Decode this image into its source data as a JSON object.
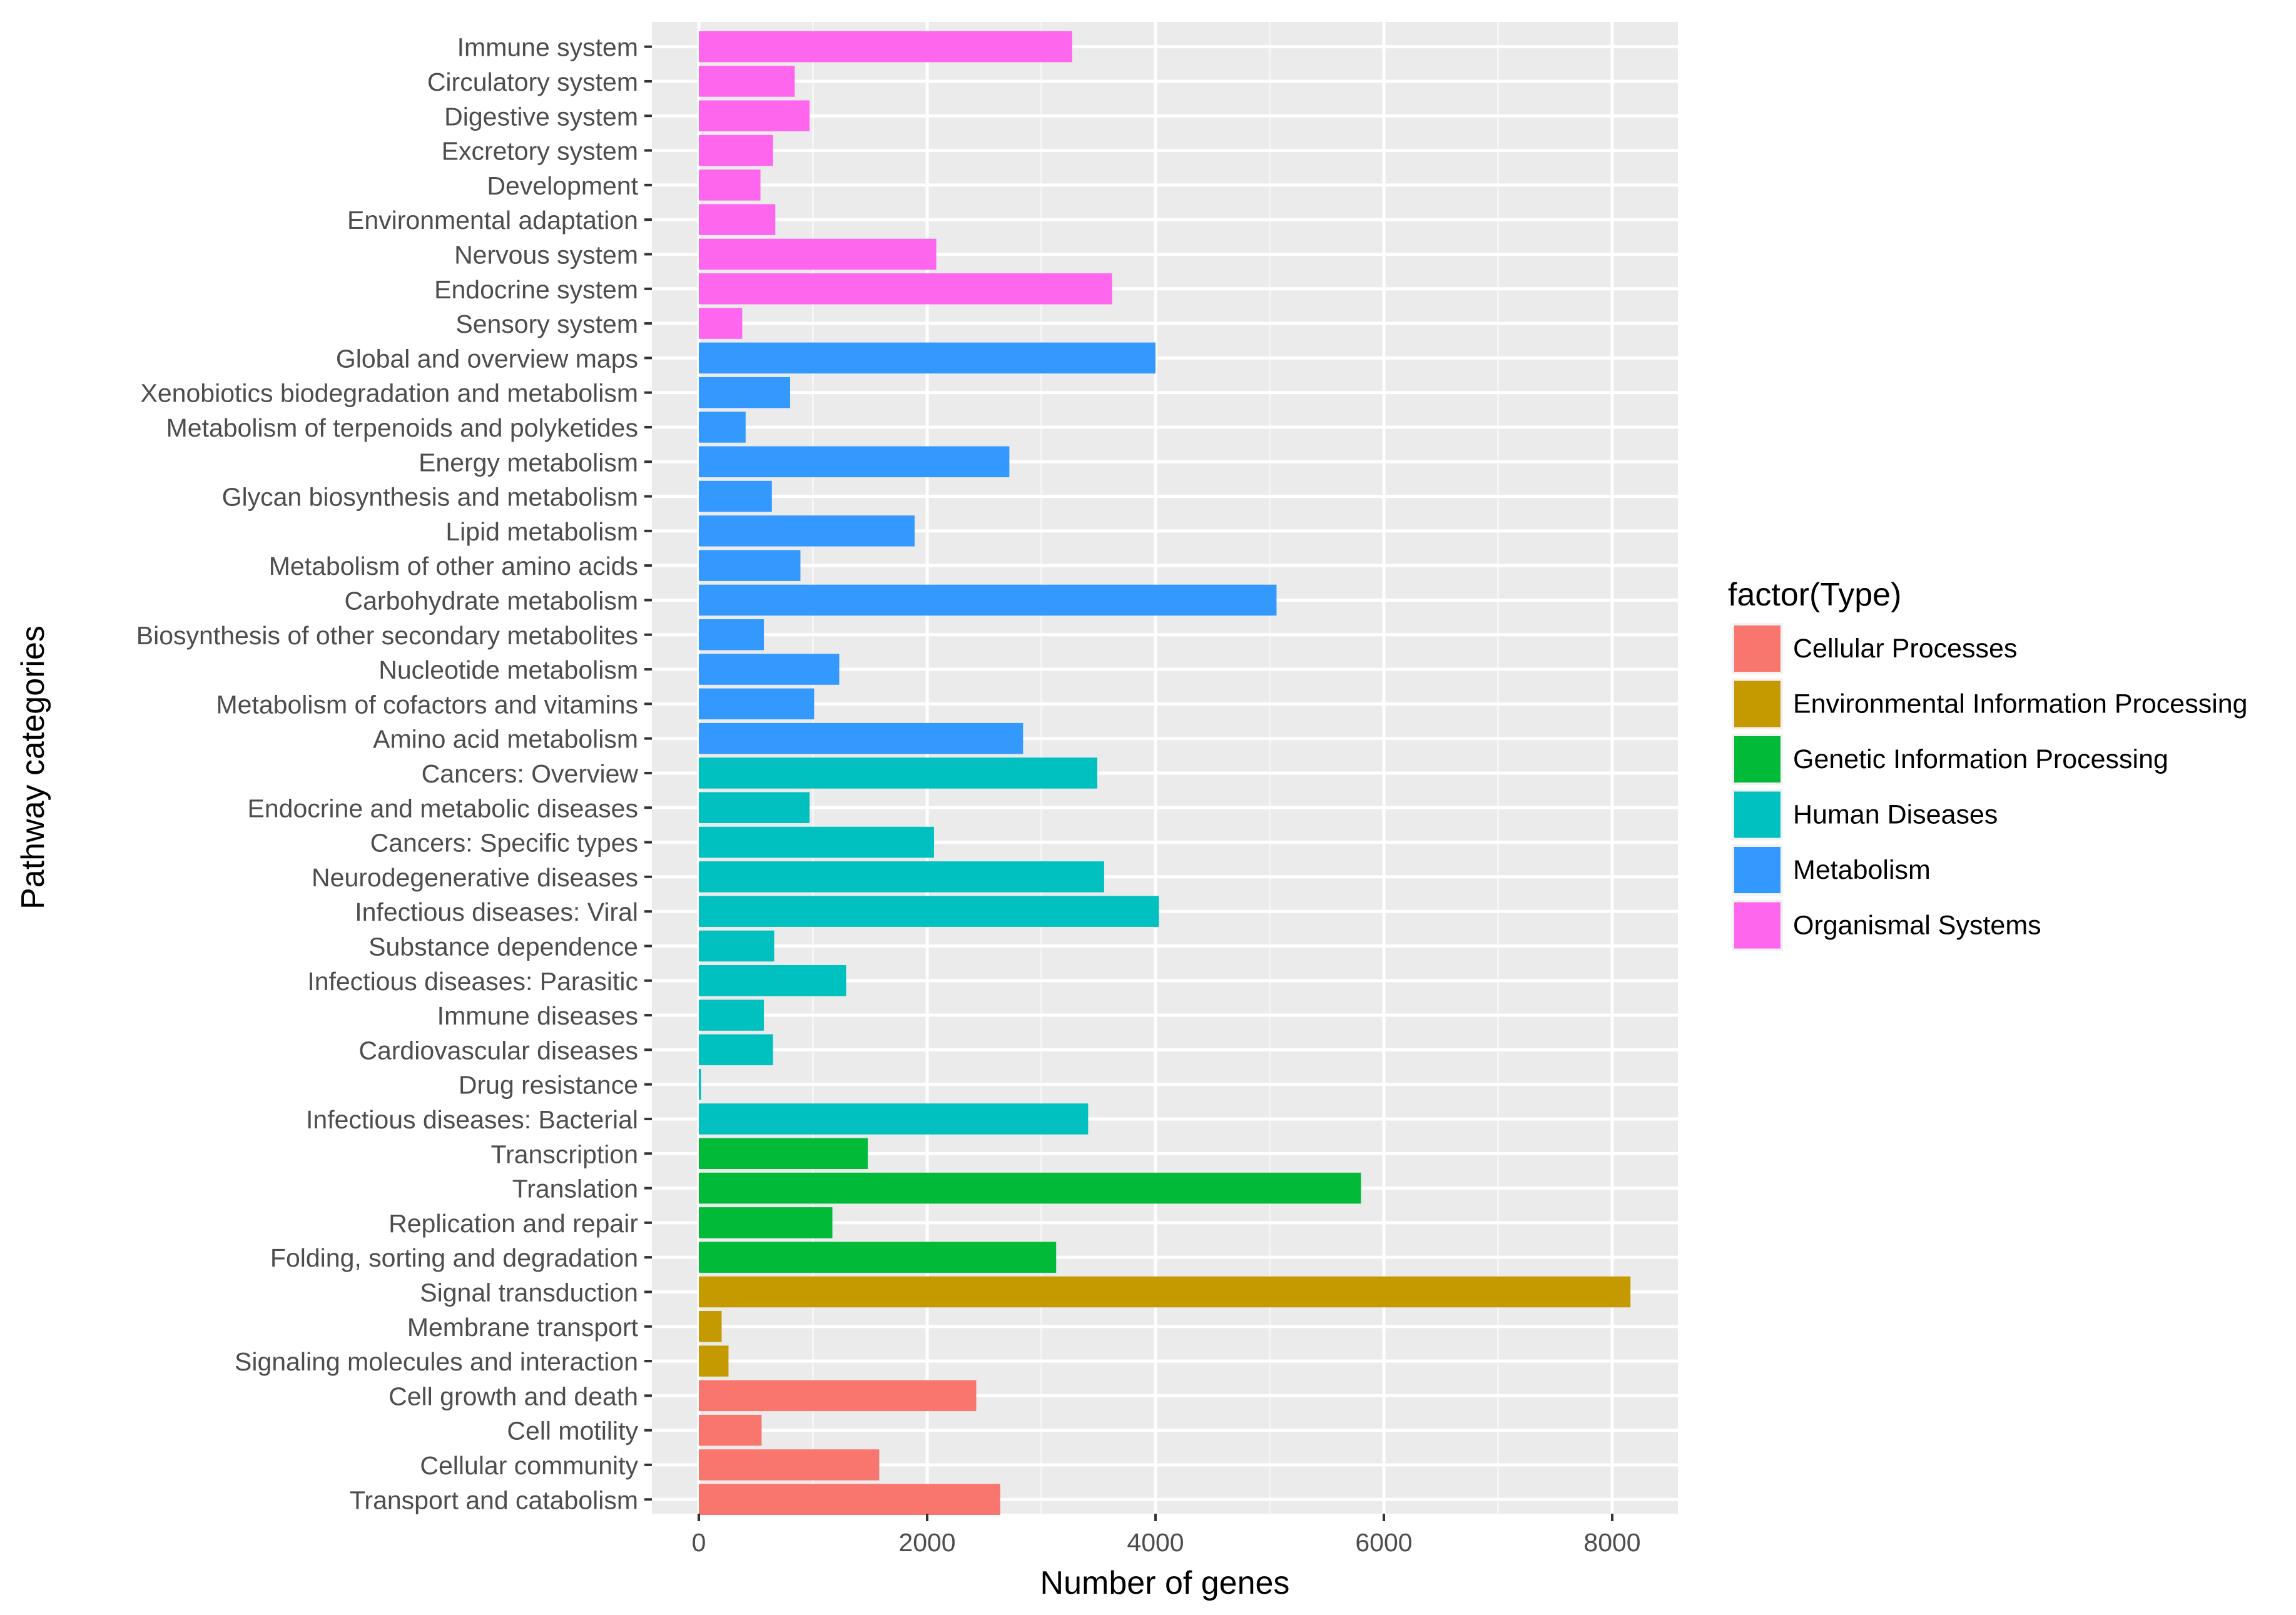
{
  "chart_data": {
    "type": "bar",
    "orientation": "horizontal",
    "xlabel": "Number of genes",
    "ylabel": "Pathway categories",
    "xlim": [
      -500,
      8500
    ],
    "xticks": [
      0,
      2000,
      4000,
      6000,
      8000
    ],
    "xtick_labels": [
      "0",
      "2000",
      "4000",
      "6000",
      "8000"
    ],
    "grid": true,
    "legend": {
      "title": "factor(Type)",
      "position": "right",
      "entries": [
        {
          "label": "Cellular Processes",
          "color": "#F8766D"
        },
        {
          "label": "Environmental Information Processing",
          "color": "#C49A00"
        },
        {
          "label": "Genetic Information Processing",
          "color": "#00BA38"
        },
        {
          "label": "Human Diseases",
          "color": "#00C0C0"
        },
        {
          "label": "Metabolism",
          "color": "#3399FF"
        },
        {
          "label": "Organismal Systems",
          "color": "#FF66EE"
        }
      ]
    },
    "bars": [
      {
        "category": "Immune system",
        "value": 3270,
        "type": "Organismal Systems"
      },
      {
        "category": "Circulatory system",
        "value": 840,
        "type": "Organismal Systems"
      },
      {
        "category": "Digestive system",
        "value": 970,
        "type": "Organismal Systems"
      },
      {
        "category": "Excretory system",
        "value": 650,
        "type": "Organismal Systems"
      },
      {
        "category": "Development",
        "value": 540,
        "type": "Organismal Systems"
      },
      {
        "category": "Environmental adaptation",
        "value": 670,
        "type": "Organismal Systems"
      },
      {
        "category": "Nervous system",
        "value": 2080,
        "type": "Organismal Systems"
      },
      {
        "category": "Endocrine system",
        "value": 3620,
        "type": "Organismal Systems"
      },
      {
        "category": "Sensory system",
        "value": 380,
        "type": "Organismal Systems"
      },
      {
        "category": "Global and overview maps",
        "value": 4000,
        "type": "Metabolism"
      },
      {
        "category": "Xenobiotics biodegradation and metabolism",
        "value": 800,
        "type": "Metabolism"
      },
      {
        "category": "Metabolism of terpenoids and polyketides",
        "value": 410,
        "type": "Metabolism"
      },
      {
        "category": "Energy metabolism",
        "value": 2720,
        "type": "Metabolism"
      },
      {
        "category": "Glycan biosynthesis and metabolism",
        "value": 640,
        "type": "Metabolism"
      },
      {
        "category": "Lipid metabolism",
        "value": 1890,
        "type": "Metabolism"
      },
      {
        "category": "Metabolism of other amino acids",
        "value": 890,
        "type": "Metabolism"
      },
      {
        "category": "Carbohydrate metabolism",
        "value": 5060,
        "type": "Metabolism"
      },
      {
        "category": "Biosynthesis of other secondary metabolites",
        "value": 570,
        "type": "Metabolism"
      },
      {
        "category": "Nucleotide metabolism",
        "value": 1230,
        "type": "Metabolism"
      },
      {
        "category": "Metabolism of cofactors and vitamins",
        "value": 1010,
        "type": "Metabolism"
      },
      {
        "category": "Amino acid metabolism",
        "value": 2840,
        "type": "Metabolism"
      },
      {
        "category": "Cancers: Overview",
        "value": 3490,
        "type": "Human Diseases"
      },
      {
        "category": "Endocrine and metabolic diseases",
        "value": 970,
        "type": "Human Diseases"
      },
      {
        "category": "Cancers: Specific types",
        "value": 2060,
        "type": "Human Diseases"
      },
      {
        "category": "Neurodegenerative diseases",
        "value": 3550,
        "type": "Human Diseases"
      },
      {
        "category": "Infectious diseases: Viral",
        "value": 4030,
        "type": "Human Diseases"
      },
      {
        "category": "Substance dependence",
        "value": 660,
        "type": "Human Diseases"
      },
      {
        "category": "Infectious diseases: Parasitic",
        "value": 1290,
        "type": "Human Diseases"
      },
      {
        "category": "Immune diseases",
        "value": 570,
        "type": "Human Diseases"
      },
      {
        "category": "Cardiovascular diseases",
        "value": 650,
        "type": "Human Diseases"
      },
      {
        "category": "Drug resistance",
        "value": 20,
        "type": "Human Diseases"
      },
      {
        "category": "Infectious diseases: Bacterial",
        "value": 3410,
        "type": "Human Diseases"
      },
      {
        "category": "Transcription",
        "value": 1480,
        "type": "Genetic Information Processing"
      },
      {
        "category": "Translation",
        "value": 5800,
        "type": "Genetic Information Processing"
      },
      {
        "category": "Replication and repair",
        "value": 1170,
        "type": "Genetic Information Processing"
      },
      {
        "category": "Folding, sorting and degradation",
        "value": 3130,
        "type": "Genetic Information Processing"
      },
      {
        "category": "Signal transduction",
        "value": 8160,
        "type": "Environmental Information Processing"
      },
      {
        "category": "Membrane transport",
        "value": 200,
        "type": "Environmental Information Processing"
      },
      {
        "category": "Signaling molecules and interaction",
        "value": 260,
        "type": "Environmental Information Processing"
      },
      {
        "category": "Cell growth and death",
        "value": 2430,
        "type": "Cellular Processes"
      },
      {
        "category": "Cell motility",
        "value": 550,
        "type": "Cellular Processes"
      },
      {
        "category": "Cellular community",
        "value": 1580,
        "type": "Cellular Processes"
      },
      {
        "category": "Transport and catabolism",
        "value": 2640,
        "type": "Cellular Processes"
      }
    ]
  }
}
